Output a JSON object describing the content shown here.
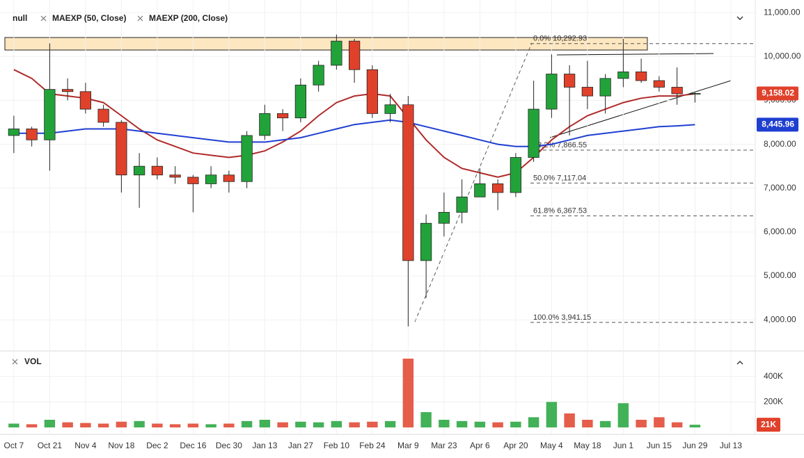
{
  "chart_data": {
    "type": "candlestick",
    "symbol": "null",
    "categories": [
      "Oct 7",
      null,
      "Oct 21",
      null,
      "Nov 4",
      null,
      "Nov 18",
      null,
      "Dec 2",
      null,
      "Dec 16",
      null,
      "Dec 30",
      null,
      "Jan 13",
      null,
      "Jan 27",
      null,
      "Feb 10",
      null,
      "Feb 24",
      null,
      "Mar 9",
      null,
      "Mar 23",
      null,
      "Apr 6",
      null,
      "Apr 20",
      null,
      "May 4",
      null,
      "May 18",
      null,
      "Jun 1",
      null,
      "Jun 15",
      null,
      "Jun 29",
      null,
      "Jul 13",
      null
    ],
    "open": [
      8200,
      8350,
      8100,
      9250,
      9200,
      8800,
      8500,
      7300,
      7500,
      7300,
      7250,
      7100,
      7300,
      7150,
      8200,
      8700,
      8600,
      9350,
      9800,
      10350,
      9700,
      8700,
      8900,
      5350,
      6200,
      6450,
      6800,
      7100,
      6900,
      7700,
      8800,
      9600,
      9300,
      9100,
      9500,
      9650,
      9450,
      9300,
      9150,
      null,
      null,
      null
    ],
    "high": [
      8650,
      8400,
      10300,
      9500,
      9400,
      8900,
      8550,
      7800,
      7700,
      7500,
      7300,
      7500,
      7400,
      8300,
      8900,
      8800,
      9500,
      9900,
      10500,
      10400,
      9800,
      9150,
      9100,
      6400,
      6900,
      7200,
      7450,
      7200,
      7800,
      9450,
      10050,
      9800,
      9900,
      9600,
      10400,
      9950,
      9550,
      9750,
      9200,
      null,
      null,
      null
    ],
    "low": [
      7800,
      7950,
      7400,
      9000,
      8700,
      8400,
      6900,
      6550,
      7200,
      7100,
      6450,
      7000,
      6900,
      7000,
      8100,
      8300,
      8500,
      9200,
      9700,
      9400,
      8600,
      8500,
      3850,
      4500,
      5900,
      6200,
      6800,
      6500,
      6800,
      7600,
      8600,
      8200,
      8800,
      8700,
      9300,
      9400,
      9200,
      8900,
      8950,
      null,
      null,
      null
    ],
    "close": [
      8350,
      8100,
      9250,
      9200,
      8800,
      8500,
      7300,
      7500,
      7300,
      7250,
      7100,
      7300,
      7150,
      8200,
      8700,
      8600,
      9350,
      9800,
      10350,
      9700,
      8700,
      8900,
      5350,
      6200,
      6450,
      6800,
      7100,
      6900,
      7700,
      8800,
      9600,
      9300,
      9100,
      9500,
      9650,
      9450,
      9300,
      9150,
      9158.02,
      null,
      null,
      null
    ],
    "close_label": "9,158.02",
    "up_color": "#22a33a",
    "down_color": "#e0412b",
    "series": [
      {
        "name": "MAEXP (50, Close)",
        "color": "#b02a2a",
        "values": [
          9700,
          9500,
          9150,
          9100,
          9050,
          8950,
          8650,
          8350,
          8100,
          7950,
          7800,
          7750,
          7700,
          7750,
          7850,
          8050,
          8300,
          8650,
          8950,
          9100,
          9150,
          9100,
          8600,
          8100,
          7700,
          7450,
          7350,
          7250,
          7350,
          7700,
          8100,
          8400,
          8650,
          8800,
          8950,
          9050,
          9100,
          9100,
          9150,
          null,
          null,
          null
        ]
      },
      {
        "name": "MAEXP (200, Close)",
        "color": "#1f3fd1",
        "values": [
          8250,
          8250,
          8250,
          8300,
          8350,
          8350,
          8350,
          8300,
          8250,
          8200,
          8150,
          8100,
          8050,
          8050,
          8050,
          8100,
          8150,
          8250,
          8350,
          8450,
          8500,
          8550,
          8500,
          8400,
          8300,
          8200,
          8100,
          8000,
          7950,
          7950,
          8000,
          8100,
          8200,
          8250,
          8300,
          8350,
          8400,
          8420,
          8445.96,
          null,
          null,
          null
        ],
        "end_label": "8,445.96"
      }
    ],
    "ylim": [
      3370,
      11160
    ],
    "yticks": [
      {
        "value": 4000,
        "label": "4,000.00"
      },
      {
        "value": 5000,
        "label": "5,000.00"
      },
      {
        "value": 6000,
        "label": "6,000.00"
      },
      {
        "value": 7000,
        "label": "7,000.00"
      },
      {
        "value": 8000,
        "label": "8,000.00"
      },
      {
        "value": 9000,
        "label": "9,000.00"
      },
      {
        "value": 10000,
        "label": "10,000.00"
      },
      {
        "value": 11000,
        "label": "11,000.00"
      }
    ],
    "grid": true,
    "fibonacci": [
      {
        "text": "0.0% 10,292.93",
        "value": 10292.93
      },
      {
        "text": "38.2% 7,866.55",
        "value": 7866.55
      },
      {
        "text": "50.0% 7,117.04",
        "value": 7117.04
      },
      {
        "text": "61.8% 6,367.53",
        "value": 6367.53
      },
      {
        "text": "100.0% 3,941.15",
        "value": 3941.15
      }
    ],
    "volume": {
      "name": "VOL",
      "values": [
        30000,
        25000,
        60000,
        40000,
        35000,
        30000,
        45000,
        50000,
        30000,
        25000,
        30000,
        25000,
        30000,
        50000,
        60000,
        40000,
        45000,
        40000,
        50000,
        40000,
        45000,
        50000,
        540000,
        120000,
        60000,
        50000,
        45000,
        40000,
        45000,
        80000,
        200000,
        110000,
        60000,
        50000,
        190000,
        60000,
        80000,
        40000,
        21000,
        null,
        null,
        null
      ],
      "last_label": "21K",
      "ylim": [
        0,
        600000
      ],
      "yticks": [
        {
          "value": 200000,
          "label": "200K"
        },
        {
          "value": 400000,
          "label": "400K"
        }
      ]
    }
  }
}
